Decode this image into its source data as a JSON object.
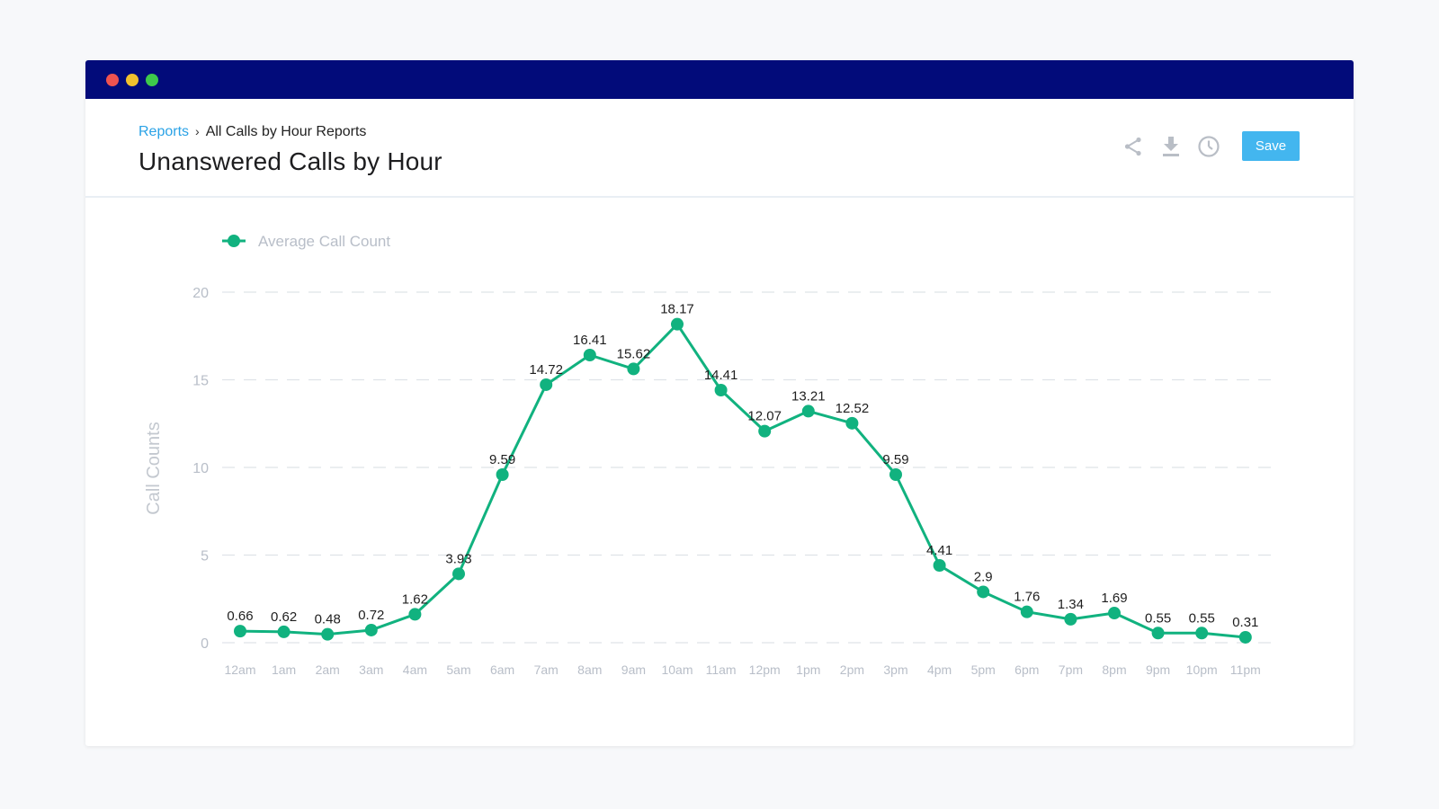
{
  "window": {
    "controls": [
      "close",
      "minimize",
      "maximize"
    ]
  },
  "header": {
    "breadcrumb_link": "Reports",
    "breadcrumb_separator": "›",
    "breadcrumb_current": "All Calls by Hour Reports",
    "title": "Unanswered Calls by Hour",
    "actions": {
      "share_icon": "share-icon",
      "download_icon": "download-icon",
      "history_icon": "clock-icon",
      "save_label": "Save"
    }
  },
  "colors": {
    "titlebar": "#020b7a",
    "accent": "#11b27f",
    "link": "#2aa2e6",
    "save_button": "#43b6ef",
    "axis_text": "#b8bec8",
    "grid": "#dfe3e8"
  },
  "chart_data": {
    "type": "line",
    "title": "",
    "xlabel": "",
    "ylabel": "Call Counts",
    "legend_position": "top-left",
    "grid": true,
    "ylim": [
      0,
      20
    ],
    "yticks": [
      0,
      5,
      10,
      15,
      20
    ],
    "categories": [
      "12am",
      "1am",
      "2am",
      "3am",
      "4am",
      "5am",
      "6am",
      "7am",
      "8am",
      "9am",
      "10am",
      "11am",
      "12pm",
      "1pm",
      "2pm",
      "3pm",
      "4pm",
      "5pm",
      "6pm",
      "7pm",
      "8pm",
      "9pm",
      "10pm",
      "11pm"
    ],
    "series": [
      {
        "name": "Average Call Count",
        "values": [
          0.66,
          0.62,
          0.48,
          0.72,
          1.62,
          3.93,
          9.59,
          14.72,
          16.41,
          15.62,
          18.17,
          14.41,
          12.07,
          13.21,
          12.52,
          9.59,
          4.41,
          2.9,
          1.76,
          1.34,
          1.69,
          0.55,
          0.55,
          0.31
        ]
      }
    ]
  }
}
